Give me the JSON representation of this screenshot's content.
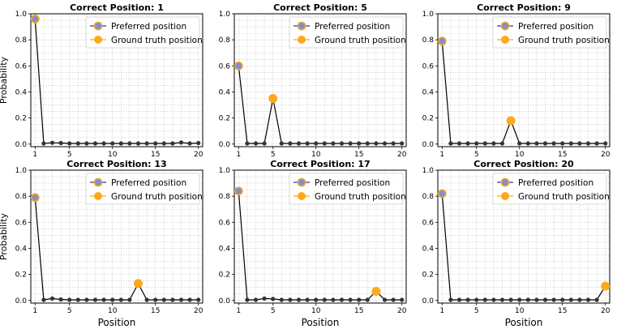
{
  "figure": {
    "ylabel": "Probability",
    "xlabel": "Position",
    "legend": [
      "Preferred position",
      "Ground truth position"
    ]
  },
  "colors": {
    "line": "#000000",
    "point": "#333333",
    "preferred_fill": "#7f8fd1",
    "preferred_edge": "#f5a623",
    "ground_truth": "#fcaa1c",
    "legend_line": "#3333aa",
    "grid": "#c8c8c8"
  },
  "chart_data": [
    {
      "type": "line",
      "title": "Correct Position: 1",
      "x": [
        1,
        2,
        3,
        4,
        5,
        6,
        7,
        8,
        9,
        10,
        11,
        12,
        13,
        14,
        15,
        16,
        17,
        18,
        19,
        20
      ],
      "y": [
        0.96,
        0.005,
        0.01,
        0.008,
        0.005,
        0.005,
        0.005,
        0.005,
        0.005,
        0.005,
        0.005,
        0.005,
        0.005,
        0.005,
        0.005,
        0.005,
        0.005,
        0.012,
        0.005,
        0.008
      ],
      "preferred": 1,
      "ground_truth": 1,
      "xticks": [
        1,
        5,
        10,
        15,
        20
      ],
      "yticks": [
        0.0,
        0.2,
        0.4,
        0.6,
        0.8,
        1.0
      ],
      "xlim": [
        0.5,
        20.5
      ],
      "ylim": [
        -0.02,
        1.0
      ],
      "ylabel": "Probability",
      "xlabel": "",
      "grid": true,
      "legend": "top-right"
    },
    {
      "type": "line",
      "title": "Correct Position: 5",
      "x": [
        1,
        2,
        3,
        4,
        5,
        6,
        7,
        8,
        9,
        10,
        11,
        12,
        13,
        14,
        15,
        16,
        17,
        18,
        19,
        20
      ],
      "y": [
        0.6,
        0.005,
        0.005,
        0.005,
        0.35,
        0.005,
        0.005,
        0.005,
        0.005,
        0.005,
        0.005,
        0.005,
        0.005,
        0.005,
        0.005,
        0.005,
        0.005,
        0.005,
        0.005,
        0.005
      ],
      "preferred": 1,
      "ground_truth": 5,
      "xticks": [
        1,
        5,
        10,
        15,
        20
      ],
      "yticks": [
        0.0,
        0.2,
        0.4,
        0.6,
        0.8,
        1.0
      ],
      "xlim": [
        0.5,
        20.5
      ],
      "ylim": [
        -0.02,
        1.0
      ],
      "ylabel": "",
      "xlabel": "",
      "grid": true,
      "legend": "top-right"
    },
    {
      "type": "line",
      "title": "Correct Position: 9",
      "x": [
        1,
        2,
        3,
        4,
        5,
        6,
        7,
        8,
        9,
        10,
        11,
        12,
        13,
        14,
        15,
        16,
        17,
        18,
        19,
        20
      ],
      "y": [
        0.79,
        0.005,
        0.005,
        0.005,
        0.005,
        0.005,
        0.005,
        0.005,
        0.18,
        0.005,
        0.005,
        0.005,
        0.005,
        0.005,
        0.005,
        0.005,
        0.005,
        0.005,
        0.005,
        0.005
      ],
      "preferred": 1,
      "ground_truth": 9,
      "xticks": [
        1,
        5,
        10,
        15,
        20
      ],
      "yticks": [
        0.0,
        0.2,
        0.4,
        0.6,
        0.8,
        1.0
      ],
      "xlim": [
        0.5,
        20.5
      ],
      "ylim": [
        -0.02,
        1.0
      ],
      "ylabel": "",
      "xlabel": "",
      "grid": true,
      "legend": "top-right"
    },
    {
      "type": "line",
      "title": "Correct Position: 13",
      "x": [
        1,
        2,
        3,
        4,
        5,
        6,
        7,
        8,
        9,
        10,
        11,
        12,
        13,
        14,
        15,
        16,
        17,
        18,
        19,
        20
      ],
      "y": [
        0.79,
        0.005,
        0.015,
        0.008,
        0.005,
        0.005,
        0.005,
        0.005,
        0.005,
        0.005,
        0.005,
        0.005,
        0.13,
        0.005,
        0.005,
        0.005,
        0.005,
        0.005,
        0.005,
        0.005
      ],
      "preferred": 1,
      "ground_truth": 13,
      "xticks": [
        1,
        5,
        10,
        15,
        20
      ],
      "yticks": [
        0.0,
        0.2,
        0.4,
        0.6,
        0.8,
        1.0
      ],
      "xlim": [
        0.5,
        20.5
      ],
      "ylim": [
        -0.02,
        1.0
      ],
      "ylabel": "Probability",
      "xlabel": "Position",
      "grid": true,
      "legend": "top-right"
    },
    {
      "type": "line",
      "title": "Correct Position: 17",
      "x": [
        1,
        2,
        3,
        4,
        5,
        6,
        7,
        8,
        9,
        10,
        11,
        12,
        13,
        14,
        15,
        16,
        17,
        18,
        19,
        20
      ],
      "y": [
        0.84,
        0.005,
        0.005,
        0.015,
        0.012,
        0.005,
        0.005,
        0.005,
        0.005,
        0.005,
        0.005,
        0.005,
        0.005,
        0.005,
        0.005,
        0.005,
        0.07,
        0.005,
        0.005,
        0.005
      ],
      "preferred": 1,
      "ground_truth": 17,
      "xticks": [
        1,
        5,
        10,
        15,
        20
      ],
      "yticks": [
        0.0,
        0.2,
        0.4,
        0.6,
        0.8,
        1.0
      ],
      "xlim": [
        0.5,
        20.5
      ],
      "ylim": [
        -0.02,
        1.0
      ],
      "ylabel": "",
      "xlabel": "Position",
      "grid": true,
      "legend": "top-right"
    },
    {
      "type": "line",
      "title": "Correct Position: 20",
      "x": [
        1,
        2,
        3,
        4,
        5,
        6,
        7,
        8,
        9,
        10,
        11,
        12,
        13,
        14,
        15,
        16,
        17,
        18,
        19,
        20
      ],
      "y": [
        0.82,
        0.005,
        0.005,
        0.005,
        0.005,
        0.005,
        0.005,
        0.005,
        0.005,
        0.005,
        0.005,
        0.005,
        0.005,
        0.005,
        0.005,
        0.005,
        0.005,
        0.005,
        0.005,
        0.11
      ],
      "preferred": 1,
      "ground_truth": 20,
      "xticks": [
        1,
        5,
        10,
        15,
        20
      ],
      "yticks": [
        0.0,
        0.2,
        0.4,
        0.6,
        0.8,
        1.0
      ],
      "xlim": [
        0.5,
        20.5
      ],
      "ylim": [
        -0.02,
        1.0
      ],
      "ylabel": "",
      "xlabel": "Position",
      "grid": true,
      "legend": "top-right"
    }
  ]
}
